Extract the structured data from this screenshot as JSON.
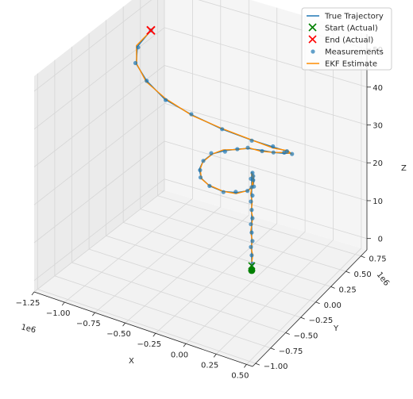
{
  "chart_data": {
    "type": "line3d",
    "series": [
      {
        "name": "True Trajectory",
        "color": "#1f77b4",
        "style": "line"
      },
      {
        "name": "Start (Actual)",
        "color": "#008000",
        "style": "x-marker"
      },
      {
        "name": "End (Actual)",
        "color": "#ff0000",
        "style": "x-marker"
      },
      {
        "name": "Measurements",
        "color": "#1f77b4",
        "style": "points"
      },
      {
        "name": "EKF Estimate",
        "color": "#ff8c00",
        "style": "line"
      }
    ],
    "legend_position": "top-right",
    "grid": true,
    "axes": {
      "x": {
        "label": "X",
        "offset_label": "1e6",
        "lim": [
          -1.25,
          0.55
        ],
        "ticks": [
          -1.25,
          -1.0,
          -0.75,
          -0.5,
          -0.25,
          0.0,
          0.25,
          0.5
        ],
        "tick_labels": [
          "−1.25",
          "−1.00",
          "−0.75",
          "−0.50",
          "−0.25",
          "0.00",
          "0.25",
          "0.50"
        ]
      },
      "y": {
        "label": "Y",
        "offset_label": "1e6",
        "lim": [
          -1.05,
          0.85
        ],
        "ticks": [
          -1.0,
          -0.75,
          -0.5,
          -0.25,
          0.0,
          0.25,
          0.5,
          0.75
        ],
        "tick_labels": [
          "−1.00",
          "−0.75",
          "−0.50",
          "−0.25",
          "0.00",
          "0.25",
          "0.50",
          "0.75"
        ]
      },
      "z": {
        "label": "Z",
        "lim": [
          -3,
          54
        ],
        "ticks": [
          0,
          10,
          20,
          30,
          40,
          50
        ],
        "tick_labels": [
          "0",
          "10",
          "20",
          "30",
          "40",
          "50"
        ]
      }
    },
    "trajectory": {
      "x_scale": 1000000,
      "y_scale": 1000000,
      "start": [
        0.0,
        0.0,
        0
      ],
      "end": [
        -1.04,
        0.3,
        49
      ],
      "true_path": [
        [
          0.0,
          0.0,
          0
        ],
        [
          0.0,
          0.0,
          2
        ],
        [
          0.0,
          0.0,
          4
        ],
        [
          0.0,
          0.0,
          6
        ],
        [
          0.0,
          0.0,
          8
        ],
        [
          0.0,
          0.0,
          10
        ],
        [
          0.0,
          0.0,
          12
        ],
        [
          0.0,
          0.0,
          14
        ],
        [
          0.0,
          0.0,
          16
        ],
        [
          0.0,
          0.0,
          18
        ],
        [
          0.0,
          0.0,
          20
        ],
        [
          0.0,
          0.0,
          22
        ],
        [
          0.0,
          0.0,
          24
        ],
        [
          0.0,
          0.0,
          26
        ],
        [
          0.05,
          -0.07,
          26.5
        ],
        [
          0.1,
          -0.15,
          27
        ],
        [
          0.14,
          -0.24,
          27.5
        ],
        [
          0.15,
          -0.35,
          28
        ],
        [
          0.11,
          -0.45,
          28.7
        ],
        [
          0.03,
          -0.52,
          29.3
        ],
        [
          -0.07,
          -0.54,
          30
        ],
        [
          -0.16,
          -0.5,
          30.5
        ],
        [
          -0.22,
          -0.42,
          31
        ],
        [
          -0.24,
          -0.32,
          31.5
        ],
        [
          -0.22,
          -0.22,
          32
        ],
        [
          -0.16,
          -0.14,
          32.2
        ],
        [
          -0.08,
          -0.08,
          32.5
        ],
        [
          0.0,
          -0.05,
          33
        ],
        [
          0.12,
          -0.07,
          34
        ],
        [
          0.25,
          -0.12,
          35.5
        ],
        [
          0.38,
          -0.18,
          37.5
        ],
        [
          0.48,
          -0.27,
          40
        ],
        [
          0.5,
          -0.38,
          42.5
        ],
        [
          0.45,
          -0.5,
          45
        ],
        [
          0.32,
          -0.62,
          47.5
        ],
        [
          0.12,
          -0.7,
          49.5
        ],
        [
          -0.12,
          -0.72,
          51
        ],
        [
          -0.38,
          -0.66,
          51.5
        ],
        [
          -0.62,
          -0.5,
          51.5
        ],
        [
          -0.82,
          -0.3,
          51
        ],
        [
          -0.97,
          -0.02,
          50
        ],
        [
          -1.04,
          0.3,
          49
        ]
      ]
    }
  },
  "toolbar": {}
}
